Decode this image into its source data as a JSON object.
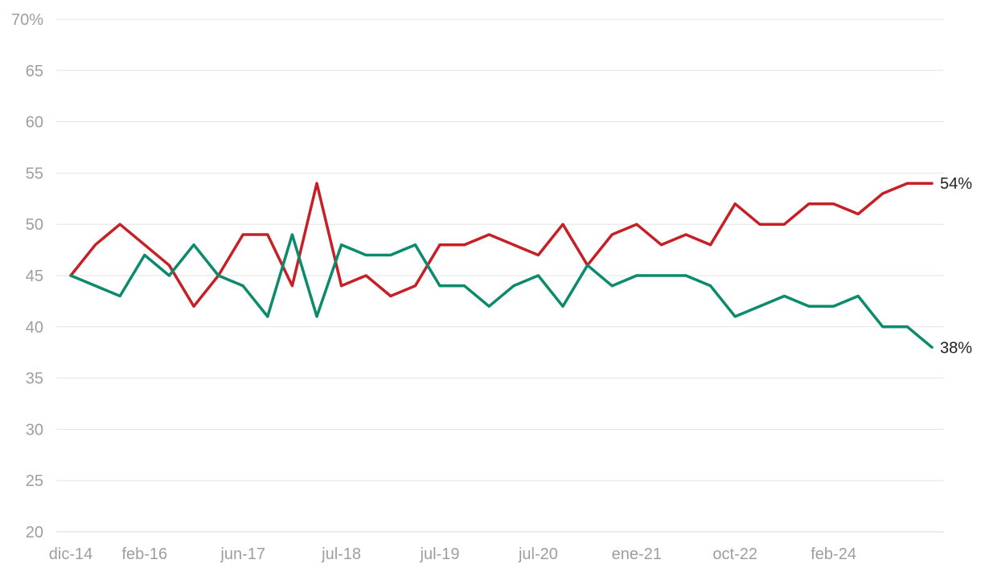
{
  "chart_data": {
    "type": "line",
    "title": "",
    "xlabel": "",
    "ylabel": "",
    "ylim": [
      20,
      70
    ],
    "yticks": [
      20,
      25,
      30,
      35,
      40,
      45,
      50,
      55,
      60,
      65,
      70
    ],
    "ytick_labels": [
      "20",
      "25",
      "30",
      "35",
      "40",
      "45",
      "50",
      "55",
      "60",
      "65",
      "70%"
    ],
    "x_tick_labels": [
      "dic-14",
      "feb-16",
      "jun-17",
      "jul-18",
      "jul-19",
      "jul-20",
      "ene-21",
      "oct-22",
      "feb-24"
    ],
    "x_tick_positions": [
      0,
      3,
      7,
      11,
      15,
      19,
      23,
      27,
      31
    ],
    "grid": true,
    "legend": "none",
    "series": [
      {
        "color": "#c62026",
        "values": [
          45,
          48,
          50,
          48,
          46,
          42,
          45,
          49,
          49,
          44,
          54,
          44,
          45,
          43,
          44,
          48,
          48,
          49,
          48,
          47,
          50,
          46,
          49,
          50,
          48,
          49,
          48,
          52,
          50,
          50,
          52,
          52,
          51,
          53,
          54,
          54
        ],
        "end_label": "54%"
      },
      {
        "color": "#0b8a6c",
        "values": [
          45,
          44,
          43,
          47,
          45,
          48,
          45,
          44,
          41,
          49,
          41,
          48,
          47,
          47,
          48,
          44,
          44,
          42,
          44,
          45,
          42,
          46,
          44,
          45,
          45,
          45,
          44,
          41,
          42,
          43,
          42,
          42,
          43,
          40,
          40,
          38
        ],
        "end_label": "38%"
      }
    ]
  }
}
